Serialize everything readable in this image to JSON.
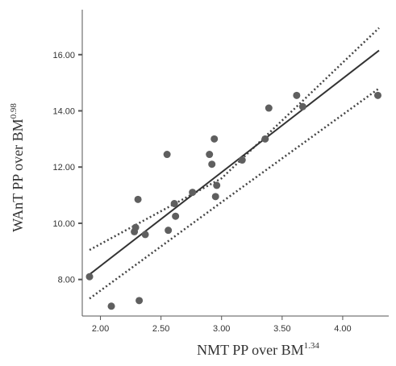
{
  "chart_data": {
    "type": "scatter",
    "title": "",
    "xlabel": "NMT PP over BM",
    "xlabel_sup": "1.34",
    "ylabel": "WAnT PP over BM",
    "ylabel_sup": "0.98",
    "xlim": [
      1.85,
      4.38
    ],
    "ylim": [
      6.7,
      17.6
    ],
    "x_ticks": [
      2.0,
      2.5,
      3.0,
      3.5,
      4.0
    ],
    "x_tick_labels": [
      "2.00",
      "2.50",
      "3.00",
      "3.50",
      "4.00"
    ],
    "y_ticks": [
      8.0,
      10.0,
      12.0,
      14.0,
      16.0
    ],
    "y_tick_labels": [
      "8.00",
      "10.00",
      "12.00",
      "14.00",
      "16.00"
    ],
    "grid": false,
    "legend": "none",
    "points": [
      {
        "x": 1.91,
        "y": 8.1
      },
      {
        "x": 2.09,
        "y": 7.05
      },
      {
        "x": 2.28,
        "y": 9.7
      },
      {
        "x": 2.29,
        "y": 9.85
      },
      {
        "x": 2.31,
        "y": 10.85
      },
      {
        "x": 2.32,
        "y": 7.25
      },
      {
        "x": 2.37,
        "y": 9.6
      },
      {
        "x": 2.55,
        "y": 12.45
      },
      {
        "x": 2.56,
        "y": 9.75
      },
      {
        "x": 2.61,
        "y": 10.7
      },
      {
        "x": 2.62,
        "y": 10.25
      },
      {
        "x": 2.76,
        "y": 11.1
      },
      {
        "x": 2.9,
        "y": 12.45
      },
      {
        "x": 2.92,
        "y": 12.1
      },
      {
        "x": 2.94,
        "y": 13.0
      },
      {
        "x": 2.95,
        "y": 10.95
      },
      {
        "x": 2.96,
        "y": 11.35
      },
      {
        "x": 3.17,
        "y": 12.25
      },
      {
        "x": 3.36,
        "y": 13.0
      },
      {
        "x": 3.39,
        "y": 14.1
      },
      {
        "x": 3.62,
        "y": 14.55
      },
      {
        "x": 3.67,
        "y": 14.15
      },
      {
        "x": 4.29,
        "y": 14.55
      }
    ],
    "fit_line": {
      "x": [
        1.91,
        4.3
      ],
      "y": [
        8.18,
        16.15
      ]
    },
    "ci_upper": {
      "x": [
        1.91,
        3.0,
        4.3
      ],
      "y": [
        9.05,
        11.6,
        16.95
      ]
    },
    "ci_lower": {
      "x": [
        1.91,
        3.0,
        4.3
      ],
      "y": [
        7.32,
        10.75,
        14.8
      ]
    },
    "colors": {
      "point": "#5f5f5f",
      "line": "#333333",
      "ci": "#444444",
      "axis": "#555555",
      "text": "#333333"
    }
  }
}
